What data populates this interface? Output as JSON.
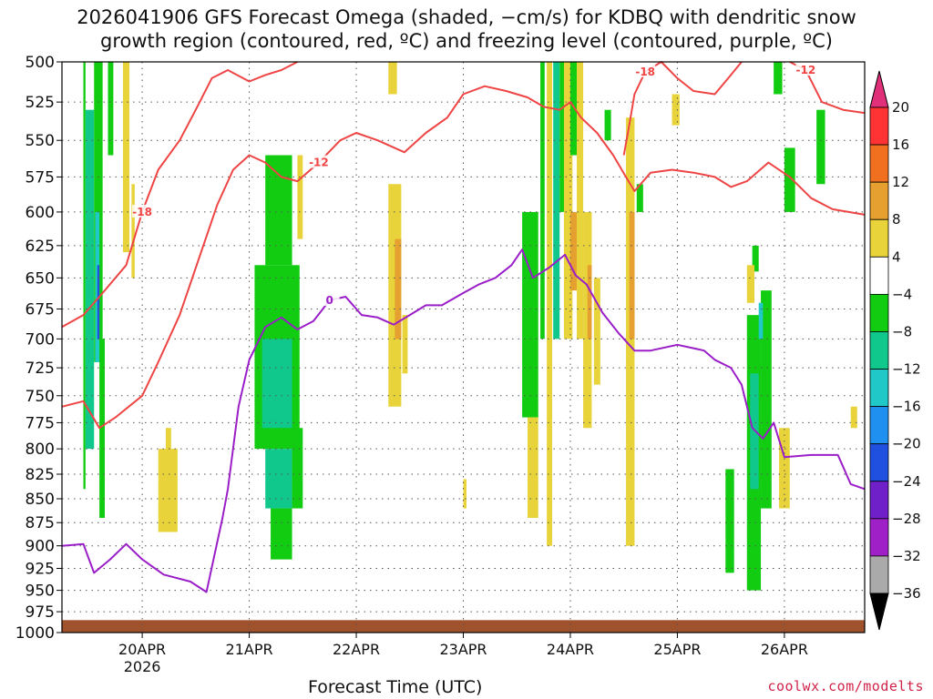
{
  "title": {
    "line1": "2026041906 GFS Forecast Omega (shaded, −cm/s) for KDBQ with dendritic snow",
    "line2": "growth region (contoured, red, ºC) and freezing level (contoured, purple, ºC)"
  },
  "credit": "coolwx.com/modelts",
  "chart_data": {
    "type": "heatmap",
    "title": "2026041906 GFS Forecast Omega (shaded, −cm/s) for KDBQ with dendritic snow growth region (contoured, red, ºC) and freezing level (contoured, purple, ºC)",
    "xlabel": "Forecast Time (UTC)",
    "ylabel": "",
    "y_scale": "log-pressure",
    "ylim": [
      1000,
      500
    ],
    "y_ticks": [
      "500",
      "525",
      "550",
      "575",
      "600",
      "625",
      "650",
      "675",
      "700",
      "725",
      "750",
      "775",
      "800",
      "825",
      "850",
      "875",
      "900",
      "925",
      "950",
      "975",
      "1000"
    ],
    "x_ticks": [
      {
        "label": "20APR",
        "sub": "2026",
        "day": 20
      },
      {
        "label": "21APR",
        "sub": "",
        "day": 21
      },
      {
        "label": "22APR",
        "sub": "",
        "day": 22
      },
      {
        "label": "23APR",
        "sub": "",
        "day": 23
      },
      {
        "label": "24APR",
        "sub": "",
        "day": 24
      },
      {
        "label": "25APR",
        "sub": "",
        "day": 25
      },
      {
        "label": "26APR",
        "sub": "",
        "day": 26
      }
    ],
    "x_range_days": [
      19.25,
      26.75
    ],
    "grid": true,
    "colorbar": {
      "labels": [
        "20",
        "16",
        "12",
        "8",
        "4",
        "−4",
        "−8",
        "−12",
        "−16",
        "−20",
        "−24",
        "−28",
        "−32",
        "−36"
      ],
      "colors": [
        "#ff3333",
        "#f07020",
        "#e6a030",
        "#e8d43a",
        "#ffffff",
        "#11cc11",
        "#10c88c",
        "#20c8c8",
        "#2090f0",
        "#2050e0",
        "#7020c8",
        "#a020c8",
        "#aaaaaa"
      ],
      "top_color": "#e0307a",
      "bottom_color": "#000000"
    },
    "shaded_regions": [
      {
        "day_start": 19.45,
        "day_end": 19.47,
        "p_top": 500,
        "p_bottom": 840,
        "value": -6
      },
      {
        "day_start": 19.47,
        "day_end": 19.55,
        "p_top": 530,
        "p_bottom": 800,
        "value": -8
      },
      {
        "day_start": 19.55,
        "day_end": 19.63,
        "p_top": 500,
        "p_bottom": 720,
        "value": -6
      },
      {
        "day_start": 19.56,
        "day_end": 19.6,
        "p_top": 600,
        "p_bottom": 720,
        "value": -14
      },
      {
        "day_start": 19.58,
        "day_end": 19.6,
        "p_top": 640,
        "p_bottom": 700,
        "value": -22
      },
      {
        "day_start": 19.6,
        "day_end": 19.65,
        "p_top": 700,
        "p_bottom": 870,
        "value": -6
      },
      {
        "day_start": 19.68,
        "day_end": 19.73,
        "p_top": 500,
        "p_bottom": 560,
        "value": -6
      },
      {
        "day_start": 19.82,
        "day_end": 19.88,
        "p_top": 500,
        "p_bottom": 630,
        "value": 5
      },
      {
        "day_start": 19.9,
        "day_end": 19.93,
        "p_top": 580,
        "p_bottom": 650,
        "value": 5
      },
      {
        "day_start": 20.15,
        "day_end": 20.33,
        "p_top": 800,
        "p_bottom": 885,
        "value": 5
      },
      {
        "day_start": 20.22,
        "day_end": 20.27,
        "p_top": 780,
        "p_bottom": 820,
        "value": 5
      },
      {
        "day_start": 21.05,
        "day_end": 21.47,
        "p_top": 640,
        "p_bottom": 800,
        "value": -6
      },
      {
        "day_start": 21.12,
        "day_end": 21.4,
        "p_top": 700,
        "p_bottom": 780,
        "value": -10
      },
      {
        "day_start": 21.15,
        "day_end": 21.4,
        "p_top": 560,
        "p_bottom": 640,
        "value": -6
      },
      {
        "day_start": 21.15,
        "day_end": 21.4,
        "p_top": 800,
        "p_bottom": 860,
        "value": -10
      },
      {
        "day_start": 21.2,
        "day_end": 21.4,
        "p_top": 860,
        "p_bottom": 915,
        "value": -6
      },
      {
        "day_start": 21.4,
        "day_end": 21.5,
        "p_top": 780,
        "p_bottom": 860,
        "value": -6
      },
      {
        "day_start": 21.45,
        "day_end": 21.5,
        "p_top": 560,
        "p_bottom": 620,
        "value": 5
      },
      {
        "day_start": 22.3,
        "day_end": 22.42,
        "p_top": 580,
        "p_bottom": 760,
        "value": 5
      },
      {
        "day_start": 22.36,
        "day_end": 22.42,
        "p_top": 620,
        "p_bottom": 700,
        "value": 9
      },
      {
        "day_start": 22.43,
        "day_end": 22.48,
        "p_top": 680,
        "p_bottom": 730,
        "value": 5
      },
      {
        "day_start": 23.0,
        "day_end": 23.03,
        "p_top": 830,
        "p_bottom": 860,
        "value": 5
      },
      {
        "day_start": 22.3,
        "day_end": 22.38,
        "p_top": 500,
        "p_bottom": 520,
        "value": 5
      },
      {
        "day_start": 23.55,
        "day_end": 23.7,
        "p_top": 600,
        "p_bottom": 770,
        "value": -6
      },
      {
        "day_start": 23.6,
        "day_end": 23.7,
        "p_top": 770,
        "p_bottom": 870,
        "value": 5
      },
      {
        "day_start": 23.72,
        "day_end": 23.76,
        "p_top": 500,
        "p_bottom": 700,
        "value": -6
      },
      {
        "day_start": 23.78,
        "day_end": 23.83,
        "p_top": 500,
        "p_bottom": 900,
        "value": 5
      },
      {
        "day_start": 23.84,
        "day_end": 23.9,
        "p_top": 500,
        "p_bottom": 700,
        "value": -8
      },
      {
        "day_start": 23.9,
        "day_end": 23.95,
        "p_top": 500,
        "p_bottom": 600,
        "value": -6
      },
      {
        "day_start": 23.94,
        "day_end": 24.02,
        "p_top": 500,
        "p_bottom": 700,
        "value": 5
      },
      {
        "day_start": 24.0,
        "day_end": 24.06,
        "p_top": 500,
        "p_bottom": 560,
        "value": -6
      },
      {
        "day_start": 24.0,
        "day_end": 24.06,
        "p_top": 600,
        "p_bottom": 660,
        "value": 9
      },
      {
        "day_start": 24.06,
        "day_end": 24.12,
        "p_top": 500,
        "p_bottom": 700,
        "value": 5
      },
      {
        "day_start": 24.12,
        "day_end": 24.2,
        "p_top": 600,
        "p_bottom": 780,
        "value": 5
      },
      {
        "day_start": 24.16,
        "day_end": 24.2,
        "p_top": 640,
        "p_bottom": 700,
        "value": 9
      },
      {
        "day_start": 24.22,
        "day_end": 24.28,
        "p_top": 650,
        "p_bottom": 740,
        "value": 5
      },
      {
        "day_start": 24.32,
        "day_end": 24.38,
        "p_top": 530,
        "p_bottom": 550,
        "value": -6
      },
      {
        "day_start": 24.52,
        "day_end": 24.6,
        "p_top": 535,
        "p_bottom": 900,
        "value": 5
      },
      {
        "day_start": 24.55,
        "day_end": 24.6,
        "p_top": 600,
        "p_bottom": 700,
        "value": 9
      },
      {
        "day_start": 24.62,
        "day_end": 24.68,
        "p_top": 580,
        "p_bottom": 600,
        "value": -6
      },
      {
        "day_start": 24.95,
        "day_end": 25.02,
        "p_top": 520,
        "p_bottom": 540,
        "value": 5
      },
      {
        "day_start": 25.45,
        "day_end": 25.53,
        "p_top": 820,
        "p_bottom": 930,
        "value": -6
      },
      {
        "day_start": 25.65,
        "day_end": 25.78,
        "p_top": 680,
        "p_bottom": 950,
        "value": -6
      },
      {
        "day_start": 25.68,
        "day_end": 25.76,
        "p_top": 730,
        "p_bottom": 840,
        "value": -10
      },
      {
        "day_start": 25.78,
        "day_end": 25.88,
        "p_top": 660,
        "p_bottom": 860,
        "value": -6
      },
      {
        "day_start": 25.76,
        "day_end": 25.8,
        "p_top": 670,
        "p_bottom": 700,
        "value": -14
      },
      {
        "day_start": 25.7,
        "day_end": 25.76,
        "p_top": 625,
        "p_bottom": 645,
        "value": -6
      },
      {
        "day_start": 25.65,
        "day_end": 25.72,
        "p_top": 640,
        "p_bottom": 670,
        "value": 5
      },
      {
        "day_start": 25.95,
        "day_end": 26.05,
        "p_top": 780,
        "p_bottom": 860,
        "value": 5
      },
      {
        "day_start": 25.9,
        "day_end": 25.98,
        "p_top": 500,
        "p_bottom": 520,
        "value": -6
      },
      {
        "day_start": 26.0,
        "day_end": 26.1,
        "p_top": 555,
        "p_bottom": 600,
        "value": -6
      },
      {
        "day_start": 26.3,
        "day_end": 26.38,
        "p_top": 530,
        "p_bottom": 580,
        "value": -6
      },
      {
        "day_start": 26.62,
        "day_end": 26.68,
        "p_top": 760,
        "p_bottom": 780,
        "value": 5
      }
    ],
    "dgz_contours": [
      {
        "label": "-18",
        "points": [
          [
            19.25,
            690
          ],
          [
            19.45,
            680
          ],
          [
            19.65,
            660
          ],
          [
            19.85,
            640
          ],
          [
            20.0,
            600
          ],
          [
            20.15,
            570
          ],
          [
            20.35,
            550
          ],
          [
            20.5,
            530
          ],
          [
            20.65,
            510
          ],
          [
            20.8,
            505
          ],
          [
            21.0,
            512
          ],
          [
            21.15,
            508
          ],
          [
            21.3,
            505
          ],
          [
            21.45,
            500
          ]
        ]
      },
      {
        "label": "-12",
        "points": [
          [
            19.25,
            760
          ],
          [
            19.45,
            755
          ],
          [
            19.6,
            780
          ],
          [
            19.75,
            770
          ],
          [
            20.0,
            750
          ],
          [
            20.15,
            720
          ],
          [
            20.35,
            680
          ],
          [
            20.55,
            630
          ],
          [
            20.7,
            595
          ],
          [
            20.85,
            570
          ],
          [
            21.0,
            560
          ],
          [
            21.15,
            565
          ],
          [
            21.3,
            575
          ],
          [
            21.45,
            578
          ],
          [
            21.65,
            565
          ],
          [
            21.85,
            550
          ],
          [
            22.0,
            545
          ],
          [
            22.2,
            550
          ],
          [
            22.45,
            558
          ],
          [
            22.65,
            545
          ],
          [
            22.85,
            535
          ],
          [
            23.0,
            520
          ],
          [
            23.2,
            515
          ],
          [
            23.4,
            518
          ],
          [
            23.6,
            522
          ],
          [
            23.75,
            528
          ],
          [
            23.9,
            530
          ],
          [
            24.0,
            525
          ],
          [
            24.1,
            535
          ],
          [
            24.25,
            545
          ],
          [
            24.4,
            560
          ],
          [
            24.52,
            575
          ],
          [
            24.6,
            585
          ],
          [
            24.75,
            572
          ],
          [
            24.95,
            570
          ],
          [
            25.15,
            572
          ],
          [
            25.35,
            575
          ],
          [
            25.5,
            582
          ],
          [
            25.65,
            578
          ],
          [
            25.85,
            565
          ],
          [
            26.05,
            575
          ],
          [
            26.25,
            590
          ],
          [
            26.45,
            598
          ],
          [
            26.75,
            602
          ]
        ]
      },
      {
        "label": "-18",
        "points": [
          [
            24.5,
            560
          ],
          [
            24.55,
            540
          ],
          [
            24.6,
            520
          ],
          [
            24.7,
            506
          ],
          [
            24.85,
            500
          ],
          [
            25.0,
            510
          ],
          [
            25.15,
            518
          ],
          [
            25.35,
            520
          ],
          [
            25.5,
            508
          ],
          [
            25.6,
            500
          ]
        ]
      },
      {
        "label": "-12",
        "points": [
          [
            26.05,
            500
          ],
          [
            26.2,
            505
          ],
          [
            26.35,
            525
          ],
          [
            26.55,
            530
          ],
          [
            26.75,
            532
          ]
        ]
      }
    ],
    "freezing_level": {
      "label": "0",
      "points": [
        [
          19.25,
          900
        ],
        [
          19.45,
          898
        ],
        [
          19.55,
          930
        ],
        [
          19.7,
          915
        ],
        [
          19.85,
          898
        ],
        [
          20.0,
          915
        ],
        [
          20.2,
          932
        ],
        [
          20.45,
          940
        ],
        [
          20.6,
          952
        ],
        [
          20.75,
          870
        ],
        [
          20.8,
          840
        ],
        [
          20.9,
          760
        ],
        [
          21.0,
          718
        ],
        [
          21.15,
          690
        ],
        [
          21.3,
          682
        ],
        [
          21.45,
          692
        ],
        [
          21.6,
          685
        ],
        [
          21.75,
          668
        ],
        [
          21.9,
          665
        ],
        [
          22.05,
          680
        ],
        [
          22.2,
          682
        ],
        [
          22.35,
          688
        ],
        [
          22.5,
          680
        ],
        [
          22.65,
          672
        ],
        [
          22.8,
          672
        ],
        [
          23.0,
          662
        ],
        [
          23.15,
          655
        ],
        [
          23.3,
          650
        ],
        [
          23.45,
          640
        ],
        [
          23.55,
          628
        ],
        [
          23.65,
          650
        ],
        [
          23.8,
          642
        ],
        [
          23.95,
          632
        ],
        [
          24.05,
          648
        ],
        [
          24.15,
          655
        ],
        [
          24.3,
          678
        ],
        [
          24.45,
          695
        ],
        [
          24.6,
          710
        ],
        [
          24.75,
          710
        ],
        [
          25.0,
          705
        ],
        [
          25.15,
          708
        ],
        [
          25.25,
          710
        ],
        [
          25.35,
          718
        ],
        [
          25.5,
          725
        ],
        [
          25.6,
          740
        ],
        [
          25.7,
          780
        ],
        [
          25.8,
          790
        ],
        [
          25.9,
          775
        ],
        [
          26.0,
          808
        ],
        [
          26.25,
          806
        ],
        [
          26.5,
          806
        ],
        [
          26.62,
          835
        ],
        [
          26.75,
          840
        ]
      ]
    },
    "terrain": {
      "color": "#a0522d",
      "surface_pressure_hpa": 985
    }
  },
  "axis_label": "Forecast Time (UTC)"
}
